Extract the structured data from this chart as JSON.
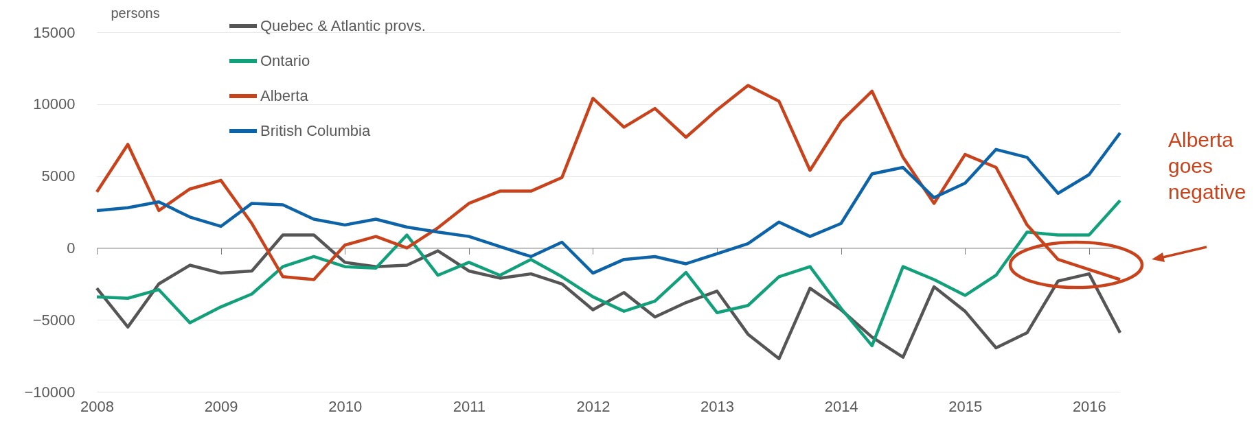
{
  "chart_data": {
    "type": "line",
    "ylabel": "persons",
    "x": [
      2008,
      2008.25,
      2008.5,
      2008.75,
      2009,
      2009.25,
      2009.5,
      2009.75,
      2010,
      2010.25,
      2010.5,
      2010.75,
      2011,
      2011.25,
      2011.5,
      2011.75,
      2012,
      2012.25,
      2012.5,
      2012.75,
      2013,
      2013.25,
      2013.5,
      2013.75,
      2014,
      2014.25,
      2014.5,
      2014.75,
      2015,
      2015.25,
      2015.5,
      2015.75,
      2016,
      2016.25
    ],
    "series": [
      {
        "name": "Quebec & Atlantic provs.",
        "color": "#555555",
        "values": [
          -2800,
          -5500,
          -2500,
          -1200,
          -1750,
          -1600,
          900,
          900,
          -1000,
          -1300,
          -1200,
          -200,
          -1600,
          -2100,
          -1800,
          -2500,
          -4300,
          -3100,
          -4800,
          -3800,
          -3000,
          -6000,
          -7700,
          -2800,
          -4300,
          -6200,
          -7600,
          -2700,
          -4400,
          -6950,
          -5900,
          -2300,
          -1800,
          -5900
        ]
      },
      {
        "name": "Ontario",
        "color": "#12a07a",
        "values": [
          -3400,
          -3500,
          -2900,
          -5200,
          -4100,
          -3200,
          -1300,
          -600,
          -1300,
          -1400,
          900,
          -1900,
          -1000,
          -1900,
          -800,
          -2000,
          -3400,
          -4400,
          -3700,
          -1700,
          -4500,
          -4000,
          -2000,
          -1300,
          -4200,
          -6800,
          -1300,
          -2200,
          -3300,
          -1900,
          1100,
          900,
          900,
          3300
        ]
      },
      {
        "name": "Alberta",
        "color": "#c8431b",
        "values": [
          3900,
          7200,
          2600,
          4100,
          4700,
          1700,
          -2000,
          -2200,
          200,
          800,
          0,
          1400,
          3100,
          3950,
          3950,
          4900,
          10400,
          8400,
          9700,
          7700,
          9600,
          11300,
          10200,
          5400,
          8800,
          10900,
          6300,
          3100,
          6500,
          5600,
          1600,
          -800,
          -1500,
          -2200
        ]
      },
      {
        "name": "British Columbia",
        "color": "#0c63a8",
        "values": [
          2600,
          2800,
          3200,
          2150,
          1500,
          3100,
          3000,
          2000,
          1600,
          2000,
          1450,
          1100,
          800,
          100,
          -600,
          400,
          -1750,
          -800,
          -600,
          -1100,
          -400,
          300,
          1800,
          800,
          1700,
          5150,
          5600,
          3500,
          4500,
          6850,
          6300,
          3800,
          5100,
          8000
        ]
      }
    ],
    "xlim": [
      2008,
      2016.25
    ],
    "xticks": [
      2008,
      2009,
      2010,
      2011,
      2012,
      2013,
      2014,
      2015,
      2016
    ],
    "ylim": [
      -10000,
      15000
    ],
    "yticks": [
      -10000,
      -5000,
      0,
      5000,
      10000,
      15000
    ],
    "grid": "y",
    "legend": "top left",
    "line_style": "solid",
    "annotations": [
      "Alberta goes negative"
    ]
  }
}
